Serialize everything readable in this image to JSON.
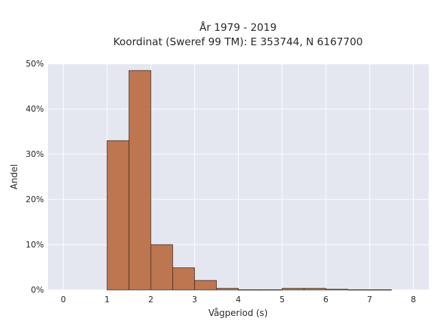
{
  "chart_data": {
    "type": "bar",
    "title_line1": "År 1979 - 2019",
    "title_line2": "Koordinat (Sweref 99 TM): E 353744, N 6167700",
    "xlabel": "Vågperiod (s)",
    "ylabel": "Andel",
    "xlim": [
      -0.35,
      8.35
    ],
    "ylim": [
      0,
      50
    ],
    "x_ticks": [
      0,
      1,
      2,
      3,
      4,
      5,
      6,
      7,
      8
    ],
    "y_ticks": [
      0,
      10,
      20,
      30,
      40,
      50
    ],
    "y_tick_labels": [
      "0%",
      "10%",
      "20%",
      "30%",
      "40%",
      "50%"
    ],
    "bin_width": 0.5,
    "bins": [
      {
        "start": 1.0,
        "value": 33.0
      },
      {
        "start": 1.5,
        "value": 48.5
      },
      {
        "start": 2.0,
        "value": 10.0
      },
      {
        "start": 2.5,
        "value": 4.9
      },
      {
        "start": 3.0,
        "value": 2.1
      },
      {
        "start": 3.5,
        "value": 0.35
      },
      {
        "start": 4.0,
        "value": 0.05
      },
      {
        "start": 4.5,
        "value": 0.05
      },
      {
        "start": 5.0,
        "value": 0.35
      },
      {
        "start": 5.5,
        "value": 0.35
      },
      {
        "start": 6.0,
        "value": 0.15
      },
      {
        "start": 6.5,
        "value": 0.05
      },
      {
        "start": 7.0,
        "value": 0.05
      }
    ],
    "grid": true,
    "bar_color": "#b8693e",
    "plot_background": "#e5e7f0"
  }
}
